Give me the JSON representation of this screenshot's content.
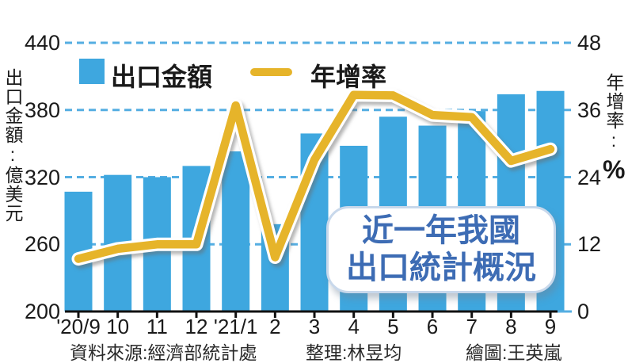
{
  "chart_data": {
    "type": "bar+line",
    "categories": [
      "'20/9",
      "10",
      "11",
      "12",
      "'21/1",
      "2",
      "3",
      "4",
      "5",
      "6",
      "7",
      "8",
      "9"
    ],
    "series": [
      {
        "name": "出口金額",
        "type": "bar",
        "axis": "left",
        "unit": "億美元",
        "values": [
          307,
          322,
          320,
          330,
          343,
          278,
          359,
          348,
          374,
          366,
          379,
          394,
          397
        ]
      },
      {
        "name": "年增率",
        "type": "line",
        "axis": "right",
        "unit": "%",
        "values": [
          9.4,
          11.2,
          12.0,
          12.0,
          36.8,
          9.7,
          27.1,
          38.7,
          38.6,
          35.1,
          34.7,
          26.9,
          29.0
        ]
      }
    ],
    "left_axis": {
      "label": "出口金額:億美元",
      "ticks": [
        440,
        380,
        320,
        260,
        200
      ],
      "min": 200,
      "max": 440
    },
    "right_axis": {
      "label": "年增率:",
      "unit": "%",
      "ticks": [
        48,
        36,
        24,
        12,
        0
      ],
      "min": 0,
      "max": 48
    },
    "grid": "horizontal dashed, on",
    "legend_position": "top"
  },
  "legend": {
    "bar_label": "出口金額",
    "line_label": "年增率"
  },
  "annotation": {
    "line1": "近一年我國",
    "line2": "出口統計概況"
  },
  "footer": {
    "source": "資料來源:經濟部統計處",
    "editor": "整理:林昱均",
    "illustrator": "繪圖:王英嵐"
  },
  "colors": {
    "bar": "#3EA7DF",
    "line": "#E6B42A",
    "line_outline": "#FFFFFF",
    "grid": "#55AEE2",
    "baseline": "#111111",
    "annotation_text": "#3D6CB4",
    "annotation_border": "#C8D8EB",
    "axis_text": "#1A1A1A"
  }
}
